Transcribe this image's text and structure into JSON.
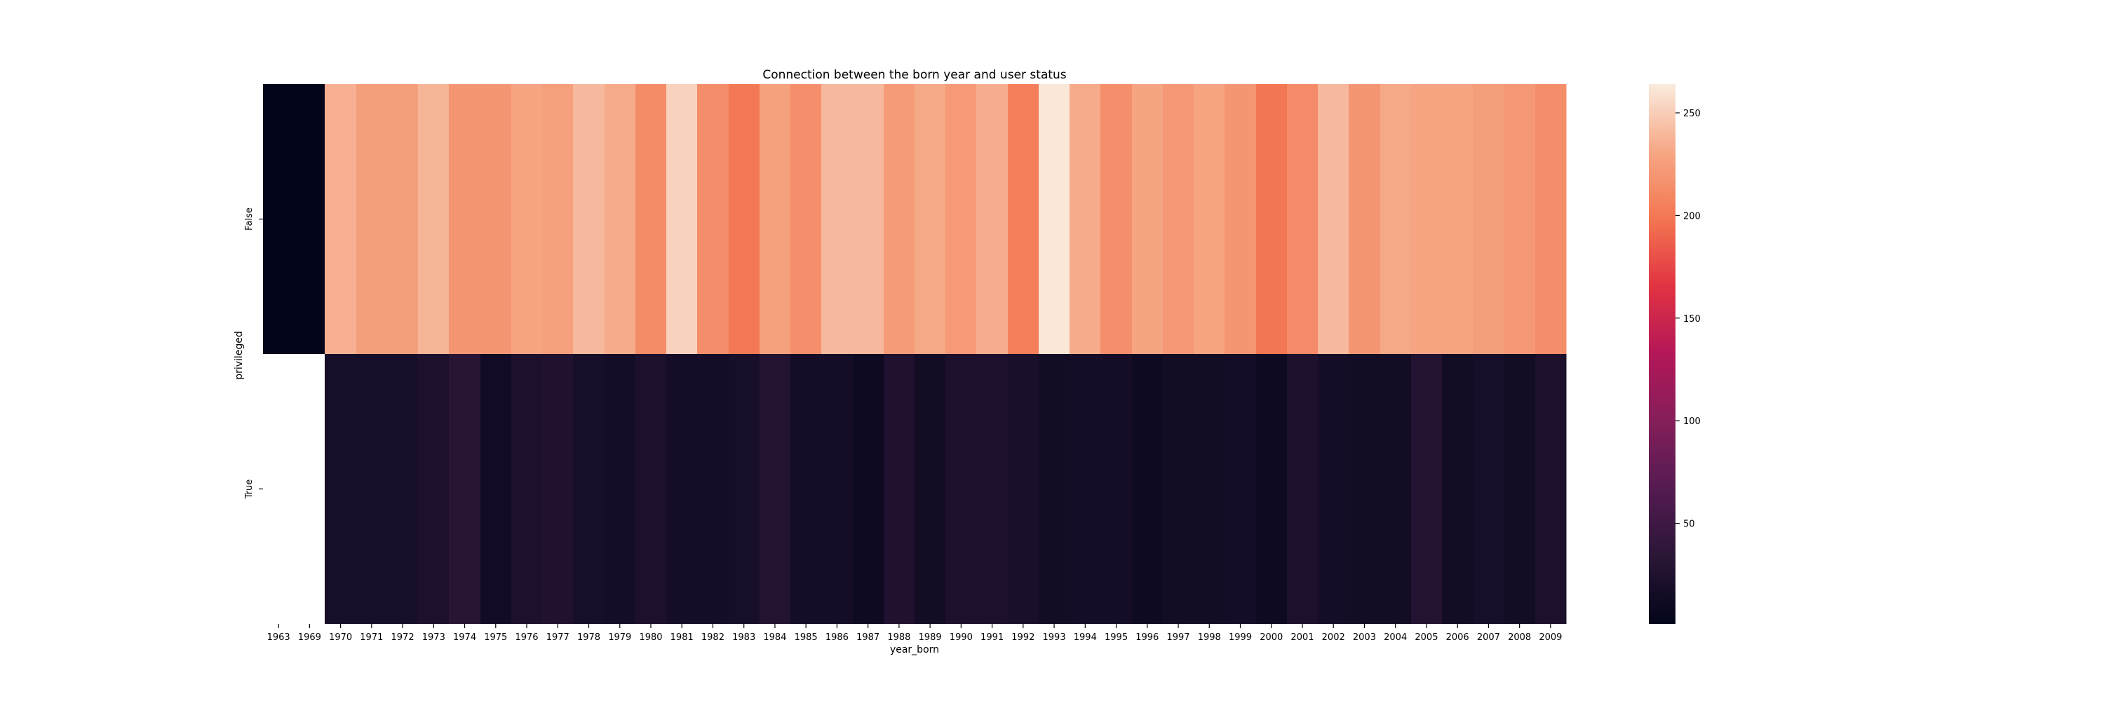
{
  "chart_data": {
    "type": "heatmap",
    "title": "Connection between the born year and user status",
    "xlabel": "year_born",
    "ylabel": "privileged",
    "x": [
      "1963",
      "1969",
      "1970",
      "1971",
      "1972",
      "1973",
      "1974",
      "1975",
      "1976",
      "1977",
      "1978",
      "1979",
      "1980",
      "1981",
      "1982",
      "1983",
      "1984",
      "1985",
      "1986",
      "1987",
      "1988",
      "1989",
      "1990",
      "1991",
      "1992",
      "1993",
      "1994",
      "1995",
      "1996",
      "1997",
      "1998",
      "1999",
      "2000",
      "2001",
      "2002",
      "2003",
      "2004",
      "2005",
      "2006",
      "2007",
      "2008",
      "2009"
    ],
    "y": [
      "False",
      "True"
    ],
    "values": [
      [
        1,
        1,
        236,
        225,
        225,
        238,
        220,
        220,
        229,
        226,
        240,
        233,
        213,
        252,
        214,
        200,
        227,
        215,
        240,
        240,
        223,
        232,
        222,
        234,
        204,
        262,
        233,
        215,
        230,
        221,
        229,
        220,
        199,
        212,
        240,
        220,
        232,
        229,
        229,
        225,
        221,
        214
      ],
      [
        null,
        null,
        18,
        18,
        18,
        22,
        32,
        13,
        22,
        25,
        18,
        16,
        22,
        16,
        16,
        18,
        28,
        16,
        16,
        10,
        25,
        14,
        22,
        22,
        20,
        14,
        16,
        16,
        10,
        14,
        14,
        16,
        10,
        22,
        16,
        14,
        14,
        28,
        14,
        18,
        14,
        22
      ]
    ],
    "colorbar": {
      "min": 1,
      "max": 264,
      "ticks": [
        50,
        100,
        150,
        200,
        250
      ]
    },
    "colormap": "rocket"
  }
}
